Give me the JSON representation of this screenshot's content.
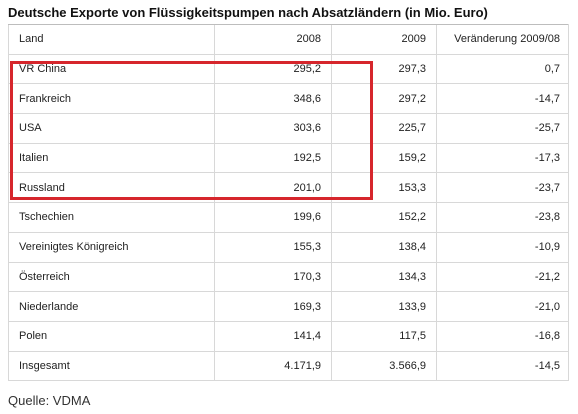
{
  "chart_data": {
    "type": "table",
    "title": "Deutsche Exporte von Flüssigkeitspumpen nach Absatzländern (in Mio. Euro)",
    "columns": [
      "Land",
      "2008",
      "2009",
      "Veränderung 2009/08"
    ],
    "rows": [
      {
        "land": "VR China",
        "y2008": "295,2",
        "y2009": "297,3",
        "diff": "0,7"
      },
      {
        "land": "Frankreich",
        "y2008": "348,6",
        "y2009": "297,2",
        "diff": "-14,7"
      },
      {
        "land": "USA",
        "y2008": "303,6",
        "y2009": "225,7",
        "diff": "-25,7"
      },
      {
        "land": "Italien",
        "y2008": "192,5",
        "y2009": "159,2",
        "diff": "-17,3"
      },
      {
        "land": "Russland",
        "y2008": "201,0",
        "y2009": "153,3",
        "diff": "-23,7"
      },
      {
        "land": "Tschechien",
        "y2008": "199,6",
        "y2009": "152,2",
        "diff": "-23,8"
      },
      {
        "land": "Vereinigtes Königreich",
        "y2008": "155,3",
        "y2009": "138,4",
        "diff": "-10,9"
      },
      {
        "land": "Österreich",
        "y2008": "170,3",
        "y2009": "134,3",
        "diff": "-21,2"
      },
      {
        "land": "Niederlande",
        "y2008": "169,3",
        "y2009": "133,9",
        "diff": "-21,0"
      },
      {
        "land": "Polen",
        "y2008": "141,4",
        "y2009": "117,5",
        "diff": "-16,8"
      },
      {
        "land": "Insgesamt",
        "y2008": "4.171,9",
        "y2009": "3.566,9",
        "diff": "-14,5"
      }
    ],
    "highlight_color": "#d6262c"
  },
  "source": "Quelle: VDMA"
}
